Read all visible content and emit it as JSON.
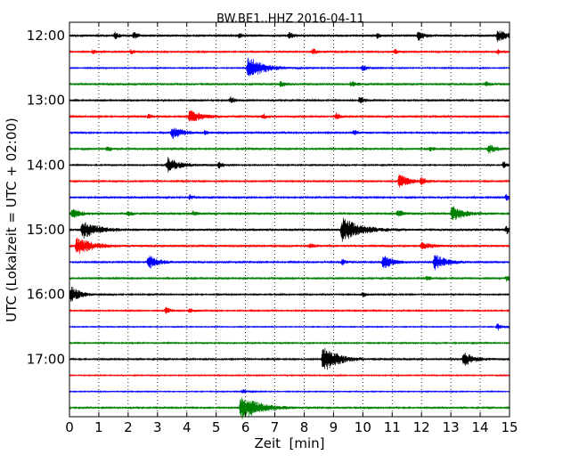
{
  "chart_data": {
    "type": "line",
    "title": "BW.BE1..HHZ 2016-04-11",
    "xlabel": "Zeit  [min]",
    "ylabel": "UTC (Lokalzeit = UTC + 02:00)",
    "xlim": [
      0,
      15
    ],
    "xticks": [
      "0",
      "1",
      "2",
      "3",
      "4",
      "5",
      "6",
      "7",
      "8",
      "9",
      "10",
      "11",
      "12",
      "13",
      "14",
      "15"
    ],
    "row_ticks": [
      {
        "row": 0,
        "label": "12:00"
      },
      {
        "row": 4,
        "label": "13:00"
      },
      {
        "row": 8,
        "label": "14:00"
      },
      {
        "row": 12,
        "label": "15:00"
      },
      {
        "row": 16,
        "label": "16:00"
      },
      {
        "row": 20,
        "label": "17:00"
      }
    ],
    "row_minutes": 15,
    "grid": "vertical-dotted",
    "trace_colors": [
      "#000000",
      "#ff0000",
      "#0000ff",
      "#008000"
    ],
    "rows": [
      {
        "start": "12:00",
        "color": "#000000",
        "noise": 1.2,
        "events": [
          {
            "t": 1.55,
            "a": 4,
            "d": 0.15
          },
          {
            "t": 2.2,
            "a": 4,
            "d": 0.15
          },
          {
            "t": 5.8,
            "a": 3,
            "d": 0.12
          },
          {
            "t": 7.5,
            "a": 4,
            "d": 0.15
          },
          {
            "t": 10.5,
            "a": 3,
            "d": 0.1
          },
          {
            "t": 11.9,
            "a": 6,
            "d": 0.2
          },
          {
            "t": 14.6,
            "a": 7,
            "d": 0.3
          }
        ]
      },
      {
        "start": "12:15",
        "color": "#ff0000",
        "noise": 1.0,
        "events": [
          {
            "t": 0.8,
            "a": 3,
            "d": 0.1
          },
          {
            "t": 2.1,
            "a": 3,
            "d": 0.1
          },
          {
            "t": 8.3,
            "a": 4,
            "d": 0.15
          },
          {
            "t": 11.1,
            "a": 3,
            "d": 0.1
          },
          {
            "t": 14.6,
            "a": 3,
            "d": 0.1
          }
        ]
      },
      {
        "start": "12:30",
        "color": "#0000ff",
        "noise": 0.8,
        "events": [
          {
            "t": 6.1,
            "a": 14,
            "d": 0.5
          },
          {
            "t": 10.0,
            "a": 4,
            "d": 0.15
          }
        ]
      },
      {
        "start": "12:45",
        "color": "#008000",
        "noise": 1.3,
        "events": [
          {
            "t": 7.2,
            "a": 3,
            "d": 0.2
          },
          {
            "t": 9.6,
            "a": 3,
            "d": 0.2
          },
          {
            "t": 14.2,
            "a": 3,
            "d": 0.15
          }
        ]
      },
      {
        "start": "13:00",
        "color": "#000000",
        "noise": 1.0,
        "events": [
          {
            "t": 5.5,
            "a": 4,
            "d": 0.15
          },
          {
            "t": 9.9,
            "a": 4,
            "d": 0.15
          }
        ]
      },
      {
        "start": "13:15",
        "color": "#ff0000",
        "noise": 1.1,
        "events": [
          {
            "t": 2.7,
            "a": 3,
            "d": 0.15
          },
          {
            "t": 4.1,
            "a": 7,
            "d": 0.45
          },
          {
            "t": 6.6,
            "a": 3,
            "d": 0.15
          },
          {
            "t": 9.1,
            "a": 4,
            "d": 0.15
          }
        ]
      },
      {
        "start": "13:30",
        "color": "#0000ff",
        "noise": 1.0,
        "events": [
          {
            "t": 3.5,
            "a": 7,
            "d": 0.4
          },
          {
            "t": 4.6,
            "a": 2,
            "d": 0.15
          },
          {
            "t": 9.7,
            "a": 3,
            "d": 0.15
          }
        ]
      },
      {
        "start": "13:45",
        "color": "#008000",
        "noise": 1.1,
        "events": [
          {
            "t": 1.3,
            "a": 3,
            "d": 0.15
          },
          {
            "t": 12.3,
            "a": 3,
            "d": 0.15
          },
          {
            "t": 14.3,
            "a": 5,
            "d": 0.3
          }
        ]
      },
      {
        "start": "14:00",
        "color": "#000000",
        "noise": 0.9,
        "events": [
          {
            "t": 3.35,
            "a": 9,
            "d": 0.4
          },
          {
            "t": 5.1,
            "a": 4,
            "d": 0.15
          },
          {
            "t": 14.8,
            "a": 4,
            "d": 0.15
          }
        ]
      },
      {
        "start": "14:15",
        "color": "#ff0000",
        "noise": 1.0,
        "events": [
          {
            "t": 11.25,
            "a": 8,
            "d": 0.35
          },
          {
            "t": 12.0,
            "a": 4,
            "d": 0.2
          }
        ]
      },
      {
        "start": "14:30",
        "color": "#0000ff",
        "noise": 1.0,
        "events": [
          {
            "t": 4.1,
            "a": 3,
            "d": 0.15
          },
          {
            "t": 14.9,
            "a": 4,
            "d": 0.15
          }
        ]
      },
      {
        "start": "14:45",
        "color": "#008000",
        "noise": 1.2,
        "events": [
          {
            "t": 0.1,
            "a": 6,
            "d": 0.3
          },
          {
            "t": 2.0,
            "a": 3,
            "d": 0.15
          },
          {
            "t": 4.2,
            "a": 3,
            "d": 0.15
          },
          {
            "t": 11.2,
            "a": 4,
            "d": 0.2
          },
          {
            "t": 13.05,
            "a": 9,
            "d": 0.4
          }
        ]
      },
      {
        "start": "15:00",
        "color": "#000000",
        "noise": 1.4,
        "events": [
          {
            "t": 0.45,
            "a": 10,
            "d": 0.5
          },
          {
            "t": 9.3,
            "a": 14,
            "d": 0.6
          },
          {
            "t": 14.9,
            "a": 4,
            "d": 0.2
          }
        ]
      },
      {
        "start": "15:15",
        "color": "#ff0000",
        "noise": 1.2,
        "events": [
          {
            "t": 0.25,
            "a": 10,
            "d": 0.55
          },
          {
            "t": 8.2,
            "a": 4,
            "d": 0.15
          },
          {
            "t": 12.0,
            "a": 4,
            "d": 0.4
          }
        ]
      },
      {
        "start": "15:30",
        "color": "#0000ff",
        "noise": 1.0,
        "events": [
          {
            "t": 2.7,
            "a": 8,
            "d": 0.35
          },
          {
            "t": 9.3,
            "a": 4,
            "d": 0.15
          },
          {
            "t": 10.7,
            "a": 8,
            "d": 0.35
          },
          {
            "t": 12.45,
            "a": 9,
            "d": 0.4
          }
        ]
      },
      {
        "start": "15:45",
        "color": "#008000",
        "noise": 1.1,
        "events": [
          {
            "t": 12.2,
            "a": 3,
            "d": 0.15
          },
          {
            "t": 14.9,
            "a": 3,
            "d": 0.15
          }
        ]
      },
      {
        "start": "16:00",
        "color": "#000000",
        "noise": 0.9,
        "events": [
          {
            "t": 0.05,
            "a": 10,
            "d": 0.3
          },
          {
            "t": 10.0,
            "a": 3,
            "d": 0.15
          }
        ]
      },
      {
        "start": "16:15",
        "color": "#ff0000",
        "noise": 0.9,
        "events": [
          {
            "t": 3.3,
            "a": 4,
            "d": 0.15
          },
          {
            "t": 4.1,
            "a": 3,
            "d": 0.15
          }
        ]
      },
      {
        "start": "16:30",
        "color": "#0000ff",
        "noise": 0.7,
        "events": [
          {
            "t": 14.6,
            "a": 4,
            "d": 0.15
          }
        ]
      },
      {
        "start": "16:45",
        "color": "#008000",
        "noise": 0.9,
        "events": []
      },
      {
        "start": "17:00",
        "color": "#000000",
        "noise": 1.0,
        "events": [
          {
            "t": 8.65,
            "a": 15,
            "d": 0.5
          },
          {
            "t": 13.45,
            "a": 8,
            "d": 0.35
          }
        ]
      },
      {
        "start": "17:15",
        "color": "#ff0000",
        "noise": 0.8,
        "events": []
      },
      {
        "start": "17:30",
        "color": "#0000ff",
        "noise": 0.7,
        "events": [
          {
            "t": 5.9,
            "a": 3,
            "d": 0.15
          }
        ]
      },
      {
        "start": "17:45",
        "color": "#008000",
        "noise": 1.0,
        "events": [
          {
            "t": 5.85,
            "a": 15,
            "d": 0.6
          }
        ]
      }
    ]
  }
}
